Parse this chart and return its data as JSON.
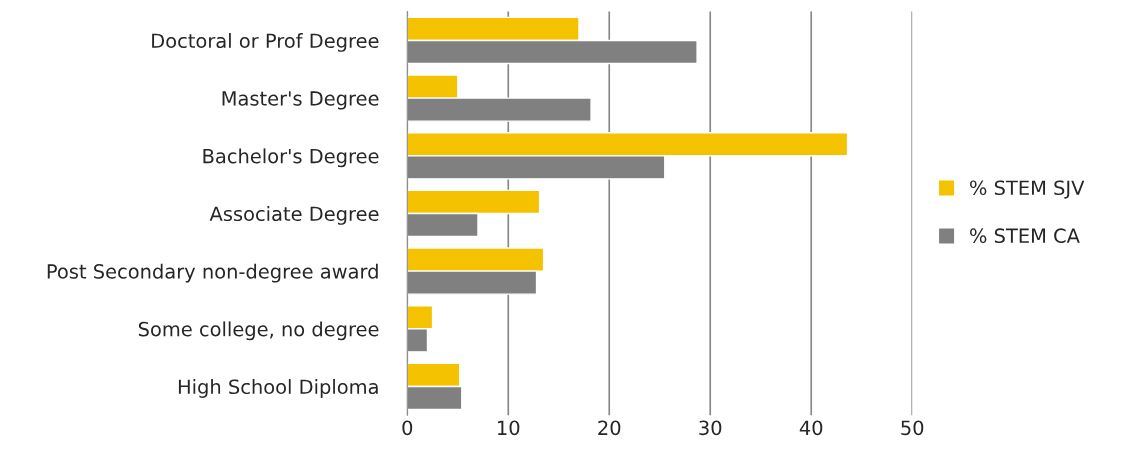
{
  "chart_data": {
    "type": "bar",
    "orientation": "horizontal",
    "categories": [
      "Doctoral or Prof Degree",
      "Master's Degree",
      "Bachelor's Degree",
      "Associate Degree",
      "Post Secondary non-degree award",
      "Some college, no degree",
      "High School Diploma"
    ],
    "series": [
      {
        "name": "% STEM SJV",
        "color": "#f5c200",
        "values": [
          17,
          5,
          43.6,
          13.1,
          13.5,
          2.5,
          5.2
        ]
      },
      {
        "name": "% STEM CA",
        "color": "#808080",
        "values": [
          28.7,
          18.2,
          25.5,
          7,
          12.8,
          2,
          5.4
        ]
      }
    ],
    "xlim": [
      0,
      50
    ],
    "xticks": [
      0,
      10,
      20,
      30,
      40,
      50
    ],
    "grid": "x",
    "legend": "right"
  }
}
